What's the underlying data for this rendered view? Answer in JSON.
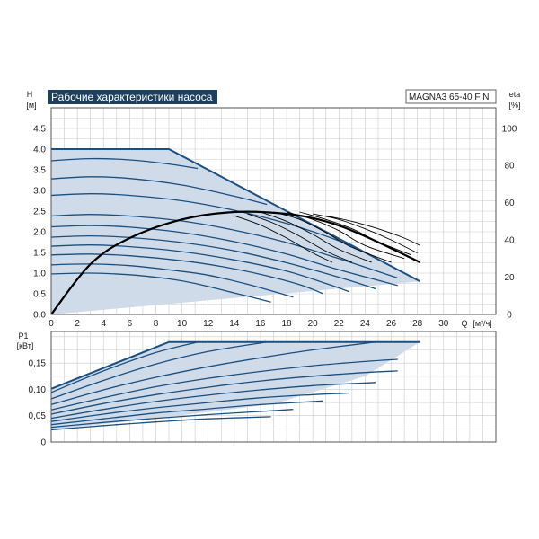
{
  "chart_data": [
    {
      "type": "line",
      "title": "Рабочие характеристики насоса",
      "model": "MAGNA3 65-40 F N",
      "ylabel": "H",
      "yunit": "[м]",
      "y2label": "eta",
      "y2unit": "[%]",
      "xlabel": "Q",
      "xunit": "[м³/ч]",
      "xlim": [
        0,
        34
      ],
      "ylim": [
        0,
        5
      ],
      "y2lim": [
        0,
        111
      ],
      "grid": true,
      "colors": {
        "curve": "#1a4f80",
        "fill": "#cfdbe9",
        "efficiency": "#000000",
        "title_bg": "#1f3f5e",
        "grid": "#c9c9c9"
      },
      "x_ticks": [
        "0",
        "2",
        "4",
        "6",
        "8",
        "10",
        "12",
        "14",
        "16",
        "18",
        "20",
        "22",
        "24",
        "26",
        "28",
        "30"
      ],
      "y_ticks": [
        "0.0",
        "0.5",
        "1.0",
        "1.5",
        "2.0",
        "2.5",
        "3.0",
        "3.5",
        "4.0",
        "4.5"
      ],
      "y2_ticks": [
        "0",
        "20",
        "40",
        "60",
        "80",
        "100"
      ],
      "envelope": {
        "x": [
          0,
          9,
          28.2,
          0
        ],
        "y": [
          4.0,
          4.0,
          0.8,
          0
        ]
      },
      "series": [
        {
          "x": [
            0,
            3,
            6,
            9,
            11,
            14,
            16.8
          ],
          "y": [
            0.98,
            1.0,
            0.96,
            0.86,
            0.75,
            0.52,
            0.3
          ]
        },
        {
          "x": [
            0,
            3,
            6,
            9,
            12,
            15,
            18.5
          ],
          "y": [
            1.2,
            1.22,
            1.18,
            1.08,
            0.95,
            0.73,
            0.42
          ]
        },
        {
          "x": [
            0,
            3,
            6,
            10,
            13,
            16,
            19,
            20.8
          ],
          "y": [
            1.44,
            1.46,
            1.42,
            1.3,
            1.16,
            0.97,
            0.72,
            0.5
          ]
        },
        {
          "x": [
            0,
            3,
            6,
            10,
            14,
            18,
            21,
            22.8
          ],
          "y": [
            1.65,
            1.68,
            1.64,
            1.52,
            1.32,
            1.05,
            0.75,
            0.55
          ]
        },
        {
          "x": [
            0,
            3,
            6,
            10,
            14,
            18,
            22,
            24.8
          ],
          "y": [
            1.87,
            1.9,
            1.86,
            1.74,
            1.54,
            1.25,
            0.9,
            0.62
          ]
        },
        {
          "x": [
            0,
            3,
            6,
            10,
            14,
            18,
            22,
            26.5
          ],
          "y": [
            2.12,
            2.15,
            2.11,
            1.98,
            1.76,
            1.46,
            1.08,
            0.7
          ]
        },
        {
          "x": [
            0,
            3,
            6,
            10,
            14,
            18,
            22,
            26.5
          ],
          "y": [
            2.38,
            2.42,
            2.38,
            2.26,
            2.04,
            1.74,
            1.35,
            0.88
          ]
        },
        {
          "x": [
            0,
            3,
            6,
            10,
            14,
            18,
            22,
            24.8
          ],
          "y": [
            2.88,
            2.92,
            2.88,
            2.75,
            2.52,
            2.2,
            1.78,
            1.38
          ]
        },
        {
          "x": [
            0,
            3,
            6,
            10,
            14,
            16.5
          ],
          "y": [
            3.28,
            3.33,
            3.29,
            3.13,
            2.86,
            2.66
          ]
        },
        {
          "x": [
            0,
            3,
            6,
            9,
            11.2
          ],
          "y": [
            3.72,
            3.77,
            3.74,
            3.64,
            3.53
          ]
        }
      ],
      "efficiency": [
        {
          "x": [
            0,
            3,
            6,
            10,
            14,
            18,
            21,
            24,
            28.2
          ],
          "y": [
            0,
            27,
            41,
            51,
            55,
            54,
            50,
            42,
            28
          ]
        },
        {
          "x": [
            14,
            16,
            18,
            20,
            21.5
          ],
          "y": [
            53,
            48,
            41,
            33,
            28
          ]
        },
        {
          "x": [
            15,
            17,
            19,
            21,
            23
          ],
          "y": [
            54,
            49,
            42,
            34,
            28
          ]
        },
        {
          "x": [
            16,
            18,
            20,
            22,
            24.5
          ],
          "y": [
            55,
            50,
            43,
            35,
            28
          ]
        },
        {
          "x": [
            17,
            19,
            21,
            23,
            26
          ],
          "y": [
            55,
            51,
            44,
            36,
            28
          ]
        },
        {
          "x": [
            18,
            20,
            22,
            24,
            27
          ],
          "y": [
            55,
            51,
            45,
            37,
            30
          ]
        },
        {
          "x": [
            19,
            21,
            23,
            25,
            27.5
          ],
          "y": [
            55,
            51,
            46,
            39,
            32
          ]
        },
        {
          "x": [
            20,
            22,
            24,
            26,
            28
          ],
          "y": [
            54,
            51,
            46,
            40,
            33
          ]
        },
        {
          "x": [
            21,
            23,
            25,
            27,
            28.2
          ],
          "y": [
            53,
            50,
            46,
            41,
            37
          ]
        }
      ]
    },
    {
      "type": "line",
      "ylabel": "P1",
      "yunit": "[кВт]",
      "xlim": [
        0,
        34
      ],
      "ylim": [
        0,
        0.21
      ],
      "grid": true,
      "y_ticks": [
        "0",
        "0,05",
        "0,10",
        "0,15"
      ],
      "envelope": {
        "x": [
          0,
          9,
          28.2,
          24,
          17,
          8,
          0
        ],
        "y": [
          0.101,
          0.19,
          0.19,
          0.125,
          0.072,
          0.045,
          0.023
        ]
      },
      "series": [
        {
          "x": [
            0,
            4,
            8,
            12,
            16.8
          ],
          "y": [
            0.023,
            0.031,
            0.038,
            0.044,
            0.048
          ]
        },
        {
          "x": [
            0,
            4,
            8,
            12,
            16,
            18.5
          ],
          "y": [
            0.028,
            0.037,
            0.045,
            0.052,
            0.058,
            0.062
          ]
        },
        {
          "x": [
            0,
            4,
            8,
            12,
            16,
            20.8
          ],
          "y": [
            0.033,
            0.044,
            0.055,
            0.063,
            0.071,
            0.078
          ]
        },
        {
          "x": [
            0,
            4,
            8,
            12,
            16,
            20,
            22.8
          ],
          "y": [
            0.039,
            0.053,
            0.065,
            0.075,
            0.084,
            0.09,
            0.093
          ]
        },
        {
          "x": [
            0,
            4,
            8,
            12,
            16,
            20,
            24.8
          ],
          "y": [
            0.045,
            0.062,
            0.077,
            0.089,
            0.099,
            0.107,
            0.113
          ]
        },
        {
          "x": [
            0,
            4,
            8,
            12,
            16,
            20,
            24,
            26.5
          ],
          "y": [
            0.053,
            0.073,
            0.09,
            0.104,
            0.116,
            0.125,
            0.132,
            0.135
          ]
        },
        {
          "x": [
            0,
            4,
            8,
            12,
            16,
            20,
            24,
            26.5
          ],
          "y": [
            0.061,
            0.084,
            0.105,
            0.121,
            0.134,
            0.145,
            0.153,
            0.157
          ]
        },
        {
          "x": [
            0,
            4,
            8,
            12,
            16,
            20,
            24.8
          ],
          "y": [
            0.071,
            0.099,
            0.123,
            0.143,
            0.16,
            0.175,
            0.19
          ]
        },
        {
          "x": [
            0,
            4,
            8,
            12,
            16.5
          ],
          "y": [
            0.082,
            0.117,
            0.148,
            0.172,
            0.19
          ]
        },
        {
          "x": [
            0,
            4,
            8,
            11.2
          ],
          "y": [
            0.094,
            0.135,
            0.17,
            0.19
          ]
        }
      ]
    }
  ]
}
